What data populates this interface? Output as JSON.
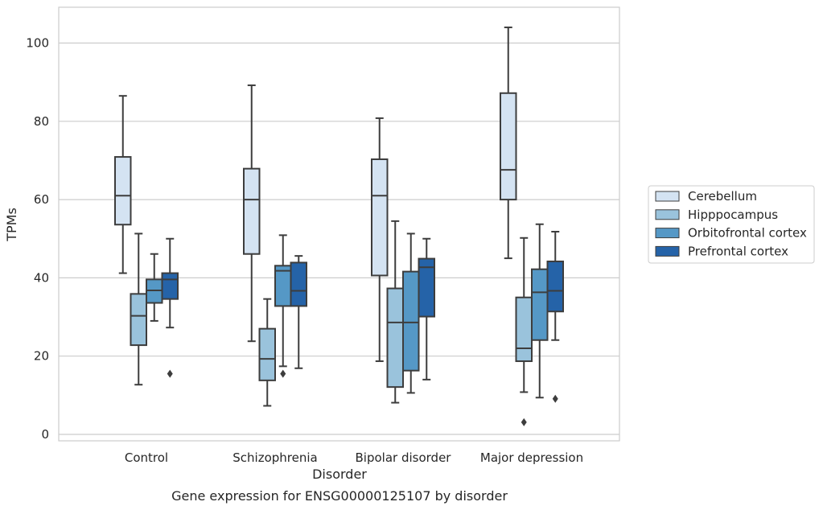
{
  "chart_data": {
    "type": "box",
    "caption": "Gene expression for ENSG00000125107 by disorder",
    "xlabel": "Disorder",
    "ylabel": "TPMs",
    "ylim": [
      -2,
      109
    ],
    "yticks": [
      0,
      20,
      40,
      60,
      80,
      100
    ],
    "grid": true,
    "legend_position": "right",
    "categories": [
      "Control",
      "Schizophrenia",
      "Bipolar disorder",
      "Major depression"
    ],
    "series": [
      {
        "name": "Cerebellum",
        "color": "#d4e3f2",
        "boxes": [
          {
            "whislo": 41.2,
            "q1": 53.6,
            "med": 61.0,
            "q3": 70.9,
            "whishi": 86.5,
            "fliers": []
          },
          {
            "whislo": 23.8,
            "q1": 46.1,
            "med": 60.0,
            "q3": 67.9,
            "whishi": 89.2,
            "fliers": []
          },
          {
            "whislo": 18.7,
            "q1": 40.6,
            "med": 61.0,
            "q3": 70.3,
            "whishi": 80.8,
            "fliers": []
          },
          {
            "whislo": 45.0,
            "q1": 60.0,
            "med": 67.6,
            "q3": 87.2,
            "whishi": 104.0,
            "fliers": []
          }
        ]
      },
      {
        "name": "Hipppocampus",
        "color": "#9ac3dc",
        "boxes": [
          {
            "whislo": 12.7,
            "q1": 22.8,
            "med": 30.3,
            "q3": 35.9,
            "whishi": 51.3,
            "fliers": []
          },
          {
            "whislo": 7.3,
            "q1": 13.8,
            "med": 19.3,
            "q3": 27.0,
            "whishi": 34.6,
            "fliers": []
          },
          {
            "whislo": 8.1,
            "q1": 12.1,
            "med": 28.6,
            "q3": 37.3,
            "whishi": 54.5,
            "fliers": []
          },
          {
            "whislo": 10.8,
            "q1": 18.7,
            "med": 22.0,
            "q3": 35.0,
            "whishi": 50.2,
            "fliers": [
              3.1
            ]
          }
        ]
      },
      {
        "name": "Orbitofrontal cortex",
        "color": "#5598c6",
        "boxes": [
          {
            "whislo": 29.0,
            "q1": 33.6,
            "med": 36.8,
            "q3": 39.6,
            "whishi": 46.1,
            "fliers": []
          },
          {
            "whislo": 17.4,
            "q1": 32.8,
            "med": 41.8,
            "q3": 43.1,
            "whishi": 50.9,
            "fliers": [
              15.5
            ]
          },
          {
            "whislo": 10.6,
            "q1": 16.3,
            "med": 28.6,
            "q3": 41.6,
            "whishi": 51.3,
            "fliers": []
          },
          {
            "whislo": 9.4,
            "q1": 24.1,
            "med": 36.3,
            "q3": 42.2,
            "whishi": 53.7,
            "fliers": []
          }
        ]
      },
      {
        "name": "Prefrontal cortex",
        "color": "#2563a8",
        "boxes": [
          {
            "whislo": 27.3,
            "q1": 34.6,
            "med": 39.6,
            "q3": 41.2,
            "whishi": 50.0,
            "fliers": [
              15.5
            ]
          },
          {
            "whislo": 16.9,
            "q1": 32.8,
            "med": 36.7,
            "q3": 43.9,
            "whishi": 45.6,
            "fliers": []
          },
          {
            "whislo": 14.0,
            "q1": 30.1,
            "med": 42.7,
            "q3": 44.9,
            "whishi": 50.0,
            "fliers": []
          },
          {
            "whislo": 24.1,
            "q1": 31.4,
            "med": 36.7,
            "q3": 44.2,
            "whishi": 51.8,
            "fliers": [
              9.1
            ]
          }
        ]
      }
    ]
  }
}
